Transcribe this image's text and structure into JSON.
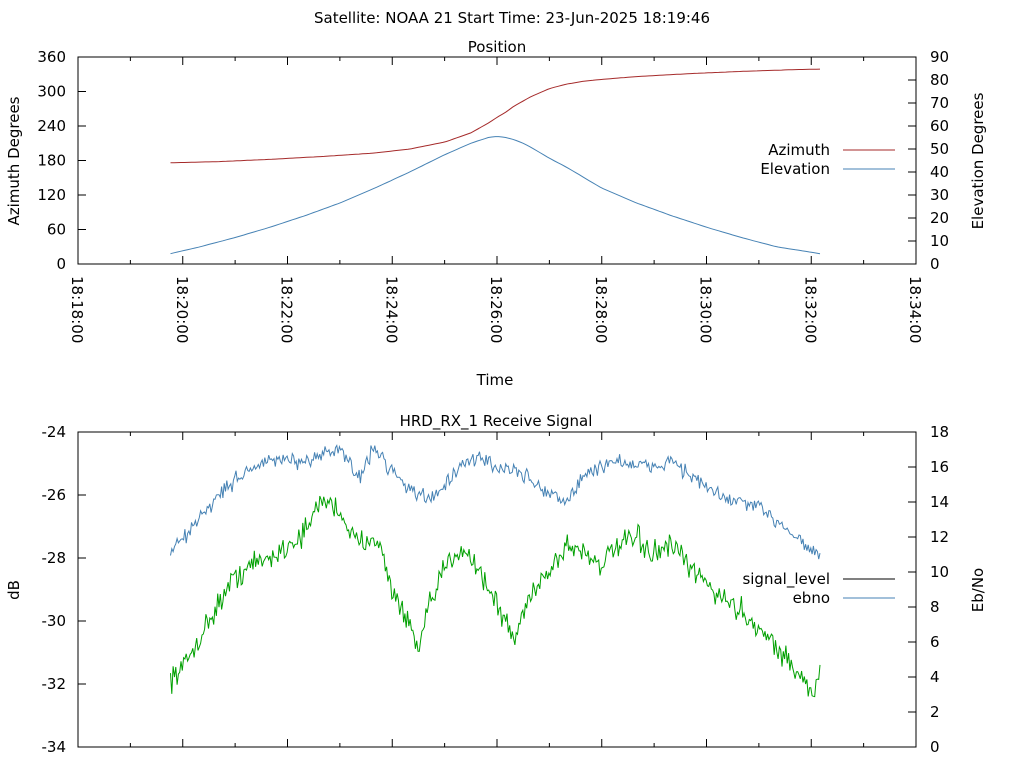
{
  "header": {
    "title": "Satellite: NOAA 21    Start Time: 23-Jun-2025 18:19:46"
  },
  "chart_data": [
    {
      "type": "line",
      "title": "Position",
      "xlabel": "Time",
      "ylabel": "Azimuth Degrees",
      "y2label": "Elevation Degrees",
      "x_ticks": [
        "18:18:00",
        "18:20:00",
        "18:22:00",
        "18:24:00",
        "18:26:00",
        "18:28:00",
        "18:30:00",
        "18:32:00",
        "18:34:00"
      ],
      "xlim": [
        0,
        960
      ],
      "ylim": [
        0,
        360
      ],
      "y_ticks": [
        0,
        60,
        120,
        180,
        240,
        300,
        360
      ],
      "y2lim": [
        0,
        90
      ],
      "y2_ticks": [
        0,
        10,
        20,
        30,
        40,
        50,
        60,
        70,
        80,
        90
      ],
      "legend_position": "right",
      "grid": false,
      "series": [
        {
          "name": "Azimuth",
          "axis": "left",
          "color": "#a52a2a",
          "x_seconds": [
            106,
            160,
            220,
            280,
            340,
            380,
            420,
            450,
            470,
            480,
            490,
            500,
            520,
            540,
            560,
            580,
            600,
            640,
            700,
            760,
            820,
            850
          ],
          "values": [
            176,
            178,
            182,
            187,
            193,
            200,
            212,
            228,
            245,
            255,
            264,
            275,
            292,
            305,
            313,
            318,
            321,
            326,
            331,
            335,
            338,
            339
          ]
        },
        {
          "name": "Elevation",
          "axis": "right",
          "color": "#4682b4",
          "x_seconds": [
            106,
            140,
            180,
            220,
            260,
            300,
            340,
            380,
            420,
            450,
            470,
            480,
            490,
            500,
            510,
            520,
            540,
            560,
            580,
            600,
            640,
            680,
            720,
            760,
            800,
            850
          ],
          "values": [
            4.5,
            7.5,
            11.5,
            16,
            21,
            26.5,
            33,
            40,
            47.5,
            52.5,
            55,
            55.5,
            55,
            54,
            52.5,
            50.5,
            46,
            42,
            37.5,
            33,
            26.5,
            21,
            16,
            11.5,
            7.5,
            4.5
          ]
        }
      ]
    },
    {
      "type": "line",
      "title": "HRD_RX_1 Receive Signal",
      "ylabel": "dB",
      "y2label": "Eb/No",
      "xlim": [
        0,
        960
      ],
      "ylim": [
        -34,
        -24
      ],
      "y_ticks": [
        -34,
        -32,
        -30,
        -28,
        -26,
        -24
      ],
      "y2lim": [
        0,
        18
      ],
      "y2_ticks": [
        0,
        2,
        4,
        6,
        8,
        10,
        12,
        14,
        16,
        18
      ],
      "legend_position": "right",
      "grid": false,
      "series": [
        {
          "name": "signal_level",
          "axis": "left",
          "color": "#00a000",
          "x_seconds": [
            106,
            120,
            140,
            160,
            180,
            200,
            220,
            240,
            260,
            280,
            300,
            320,
            340,
            360,
            380,
            390,
            400,
            420,
            440,
            460,
            480,
            500,
            520,
            540,
            560,
            580,
            600,
            620,
            640,
            660,
            680,
            700,
            720,
            740,
            760,
            780,
            800,
            820,
            840,
            850
          ],
          "values": [
            -31.8,
            -31.5,
            -30.5,
            -29.5,
            -28.6,
            -28.2,
            -28.0,
            -27.6,
            -27.2,
            -26.1,
            -26.5,
            -27.6,
            -27.2,
            -29.0,
            -30.2,
            -31.0,
            -29.8,
            -28.3,
            -27.6,
            -28.4,
            -29.5,
            -30.6,
            -29.0,
            -28.4,
            -27.6,
            -27.8,
            -28.2,
            -27.6,
            -27.4,
            -27.9,
            -27.6,
            -28.3,
            -28.8,
            -29.3,
            -29.7,
            -30.2,
            -30.8,
            -31.5,
            -32.3,
            -31.8
          ]
        },
        {
          "name": "ebno",
          "axis": "right",
          "color": "#4682b4",
          "x_seconds": [
            106,
            120,
            140,
            160,
            180,
            200,
            220,
            240,
            260,
            280,
            300,
            310,
            320,
            340,
            360,
            380,
            400,
            420,
            440,
            460,
            480,
            500,
            520,
            540,
            560,
            580,
            600,
            620,
            640,
            660,
            680,
            700,
            720,
            740,
            760,
            780,
            800,
            820,
            840,
            850
          ],
          "values": [
            11.3,
            11.8,
            13.2,
            14.3,
            15.3,
            16.0,
            16.3,
            16.5,
            16.0,
            16.9,
            17.0,
            16.4,
            15.3,
            17.1,
            15.8,
            14.8,
            14.1,
            15.0,
            16.0,
            16.6,
            16.0,
            15.8,
            15.2,
            14.5,
            14.0,
            15.5,
            16.1,
            16.4,
            16.0,
            16.0,
            16.4,
            15.6,
            14.8,
            14.2,
            14.0,
            13.6,
            13.0,
            12.2,
            11.3,
            10.8
          ]
        }
      ]
    }
  ]
}
